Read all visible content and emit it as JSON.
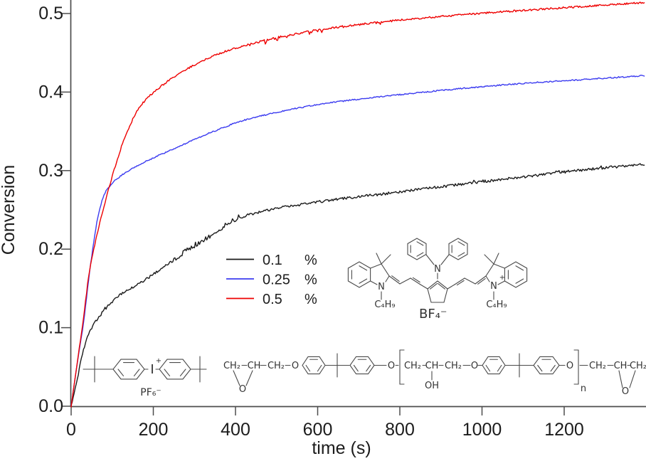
{
  "chart_data": {
    "type": "line",
    "title": "",
    "xlabel": "time (s)",
    "ylabel": "Conversion",
    "xlim": [
      0,
      1400
    ],
    "ylim": [
      0,
      0.515
    ],
    "grid": false,
    "legend_position": "inside-center-left",
    "x_ticks": [
      0,
      200,
      400,
      600,
      800,
      1000,
      1200
    ],
    "x_tick_labels": [
      "0",
      "200",
      "400",
      "600",
      "800",
      "1000",
      "1200"
    ],
    "y_ticks": [
      0.0,
      0.1,
      0.2,
      0.3,
      0.4,
      0.5
    ],
    "y_tick_labels": [
      "0.0",
      "0.1",
      "0.2",
      "0.3",
      "0.4",
      "0.5"
    ],
    "series": [
      {
        "name": "0.1 %",
        "label": "0.1",
        "unit": "%",
        "color": "#1a1a1a",
        "points": [
          [
            0,
            0
          ],
          [
            15,
            0.035
          ],
          [
            30,
            0.072
          ],
          [
            45,
            0.094
          ],
          [
            60,
            0.108
          ],
          [
            85,
            0.125
          ],
          [
            120,
            0.142
          ],
          [
            171,
            0.158
          ],
          [
            256,
            0.188
          ],
          [
            342,
            0.217
          ],
          [
            427,
            0.243
          ],
          [
            600,
            0.26
          ],
          [
            770,
            0.271
          ],
          [
            940,
            0.282
          ],
          [
            1100,
            0.292
          ],
          [
            1250,
            0.301
          ],
          [
            1395,
            0.308
          ]
        ]
      },
      {
        "name": "0.25 %",
        "label": "0.25",
        "unit": "%",
        "color": "#3b3bf0",
        "points": [
          [
            0,
            0
          ],
          [
            15,
            0.055
          ],
          [
            29,
            0.102
          ],
          [
            48,
            0.183
          ],
          [
            68,
            0.248
          ],
          [
            85,
            0.274
          ],
          [
            120,
            0.293
          ],
          [
            171,
            0.309
          ],
          [
            256,
            0.329
          ],
          [
            342,
            0.349
          ],
          [
            427,
            0.365
          ],
          [
            600,
            0.384
          ],
          [
            770,
            0.395
          ],
          [
            940,
            0.404
          ],
          [
            1100,
            0.411
          ],
          [
            1250,
            0.416
          ],
          [
            1395,
            0.421
          ]
        ]
      },
      {
        "name": "0.5 %",
        "label": "0.5",
        "unit": "%",
        "color": "#ee0000",
        "points": [
          [
            0,
            0
          ],
          [
            14,
            0.052
          ],
          [
            28,
            0.104
          ],
          [
            45,
            0.173
          ],
          [
            73,
            0.24
          ],
          [
            103,
            0.298
          ],
          [
            135,
            0.348
          ],
          [
            171,
            0.384
          ],
          [
            256,
            0.421
          ],
          [
            342,
            0.445
          ],
          [
            427,
            0.46
          ],
          [
            600,
            0.479
          ],
          [
            770,
            0.49
          ],
          [
            940,
            0.498
          ],
          [
            1100,
            0.504
          ],
          [
            1250,
            0.509
          ],
          [
            1395,
            0.514
          ]
        ]
      }
    ]
  },
  "structures": {
    "dye": {
      "n": "N",
      "plus": "+",
      "butyl": "C₄H₉",
      "counterion": "BF₄⁻"
    },
    "iodonium": {
      "iodine": "I",
      "plus": "+",
      "counterion": "PF₆⁻"
    },
    "epoxy": {
      "ch2": "CH₂",
      "ch": "CH",
      "o": "O",
      "oh": "OH",
      "n": "n"
    }
  }
}
